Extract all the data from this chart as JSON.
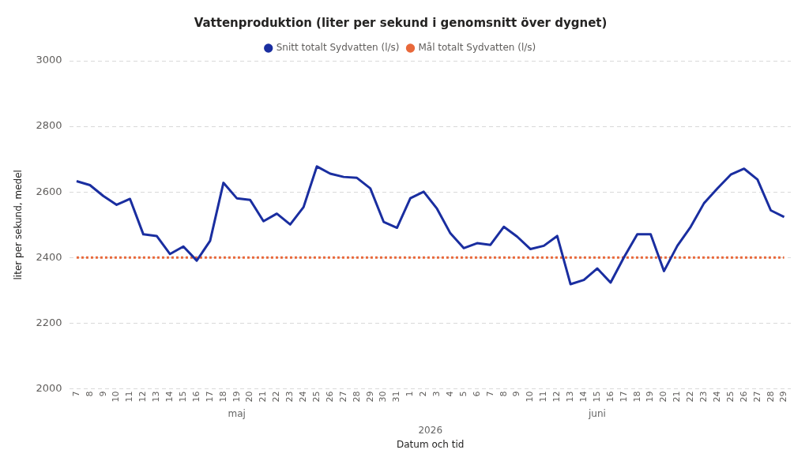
{
  "chart_data": {
    "type": "line",
    "title": "Vattenproduktion (liter per sekund i genomsnitt över dygnet)",
    "xlabel": "Datum och tid",
    "ylabel": "liter per sekund, medel",
    "x": [
      "2026-05-07",
      "2026-05-08",
      "2026-05-09",
      "2026-05-10",
      "2026-05-11",
      "2026-05-12",
      "2026-05-13",
      "2026-05-14",
      "2026-05-15",
      "2026-05-16",
      "2026-05-17",
      "2026-05-18",
      "2026-05-19",
      "2026-05-20",
      "2026-05-21",
      "2026-05-22",
      "2026-05-23",
      "2026-05-24",
      "2026-05-25",
      "2026-05-26",
      "2026-05-27",
      "2026-05-28",
      "2026-05-29",
      "2026-05-30",
      "2026-05-31",
      "2026-06-01",
      "2026-06-02",
      "2026-06-03",
      "2026-06-04",
      "2026-06-05",
      "2026-06-06",
      "2026-06-07",
      "2026-06-08",
      "2026-06-09",
      "2026-06-10",
      "2026-06-11",
      "2026-06-12",
      "2026-06-13",
      "2026-06-14",
      "2026-06-15",
      "2026-06-16",
      "2026-06-17",
      "2026-06-18",
      "2026-06-19",
      "2026-06-20",
      "2026-06-21",
      "2026-06-22",
      "2026-06-23",
      "2026-06-24",
      "2026-06-25",
      "2026-06-26",
      "2026-06-27",
      "2026-06-28",
      "2026-06-29"
    ],
    "series": [
      {
        "name": "Snitt totalt Sydvatten (l/s)",
        "color": "#1a2ea0",
        "line_style": "solid",
        "values": [
          2633,
          2621,
          2588,
          2561,
          2579,
          2471,
          2466,
          2411,
          2434,
          2391,
          2451,
          2628,
          2581,
          2576,
          2511,
          2534,
          2501,
          2554,
          2678,
          2656,
          2646,
          2643,
          2611,
          2509,
          2491,
          2581,
          2601,
          2549,
          2474,
          2429,
          2444,
          2439,
          2494,
          2464,
          2426,
          2436,
          2466,
          2319,
          2332,
          2367,
          2324,
          2401,
          2471,
          2471,
          2359,
          2436,
          2494,
          2566,
          2611,
          2653,
          2671,
          2638,
          2544,
          2524
        ]
      },
      {
        "name": "Mål totalt Sydvatten (l/s)",
        "color": "#e8683a",
        "line_style": "dotted",
        "values": [
          2400,
          2400,
          2400,
          2400,
          2400,
          2400,
          2400,
          2400,
          2400,
          2400,
          2400,
          2400,
          2400,
          2400,
          2400,
          2400,
          2400,
          2400,
          2400,
          2400,
          2400,
          2400,
          2400,
          2400,
          2400,
          2400,
          2400,
          2400,
          2400,
          2400,
          2400,
          2400,
          2400,
          2400,
          2400,
          2400,
          2400,
          2400,
          2400,
          2400,
          2400,
          2400,
          2400,
          2400,
          2400,
          2400,
          2400,
          2400,
          2400,
          2400,
          2400,
          2400,
          2400,
          2400
        ]
      }
    ],
    "xlim": [
      "2026-05-06T12:00",
      "2026-06-29T12:00"
    ],
    "xticks": [
      {
        "value": "2026-05-07",
        "label": "7"
      },
      {
        "value": "2026-05-08",
        "label": "8"
      },
      {
        "value": "2026-05-09",
        "label": "9"
      },
      {
        "value": "2026-05-10",
        "label": "10"
      },
      {
        "value": "2026-05-11",
        "label": "11"
      },
      {
        "value": "2026-05-12",
        "label": "12"
      },
      {
        "value": "2026-05-13",
        "label": "13"
      },
      {
        "value": "2026-05-14",
        "label": "14"
      },
      {
        "value": "2026-05-15",
        "label": "15"
      },
      {
        "value": "2026-05-16",
        "label": "16"
      },
      {
        "value": "2026-05-17",
        "label": "17"
      },
      {
        "value": "2026-05-18",
        "label": "18"
      },
      {
        "value": "2026-05-19",
        "label": "19"
      },
      {
        "value": "2026-05-20",
        "label": "20"
      },
      {
        "value": "2026-05-21",
        "label": "21"
      },
      {
        "value": "2026-05-22",
        "label": "22"
      },
      {
        "value": "2026-05-23",
        "label": "23"
      },
      {
        "value": "2026-05-24",
        "label": "24"
      },
      {
        "value": "2026-05-25",
        "label": "25"
      },
      {
        "value": "2026-05-26",
        "label": "26"
      },
      {
        "value": "2026-05-27",
        "label": "27"
      },
      {
        "value": "2026-05-28",
        "label": "28"
      },
      {
        "value": "2026-05-29",
        "label": "29"
      },
      {
        "value": "2026-05-30",
        "label": "30"
      },
      {
        "value": "2026-05-31",
        "label": "31"
      },
      {
        "value": "2026-06-01",
        "label": "1"
      },
      {
        "value": "2026-06-02",
        "label": "2"
      },
      {
        "value": "2026-06-03",
        "label": "3"
      },
      {
        "value": "2026-06-04",
        "label": "4"
      },
      {
        "value": "2026-06-05",
        "label": "5"
      },
      {
        "value": "2026-06-06",
        "label": "6"
      },
      {
        "value": "2026-06-07",
        "label": "7"
      },
      {
        "value": "2026-06-08",
        "label": "8"
      },
      {
        "value": "2026-06-09",
        "label": "9"
      },
      {
        "value": "2026-06-10",
        "label": "10"
      },
      {
        "value": "2026-06-11",
        "label": "11"
      },
      {
        "value": "2026-06-12",
        "label": "12"
      },
      {
        "value": "2026-06-13",
        "label": "13"
      },
      {
        "value": "2026-06-14",
        "label": "14"
      },
      {
        "value": "2026-06-15",
        "label": "15"
      },
      {
        "value": "2026-06-16",
        "label": "16"
      },
      {
        "value": "2026-06-17",
        "label": "17"
      },
      {
        "value": "2026-06-18",
        "label": "18"
      },
      {
        "value": "2026-06-19",
        "label": "19"
      },
      {
        "value": "2026-06-20",
        "label": "20"
      },
      {
        "value": "2026-06-21",
        "label": "21"
      },
      {
        "value": "2026-06-22",
        "label": "22"
      },
      {
        "value": "2026-06-23",
        "label": "23"
      },
      {
        "value": "2026-06-24",
        "label": "24"
      },
      {
        "value": "2026-06-25",
        "label": "25"
      },
      {
        "value": "2026-06-26",
        "label": "26"
      },
      {
        "value": "2026-06-27",
        "label": "27"
      },
      {
        "value": "2026-06-28",
        "label": "28"
      },
      {
        "value": "2026-06-29",
        "label": "29"
      }
    ],
    "ylim": [
      2000,
      3000
    ],
    "yticks": [
      2000,
      2200,
      2400,
      2600,
      2800,
      3000
    ],
    "annotations": [
      "maj",
      "juni",
      "2026"
    ],
    "grid": "y",
    "legend": "top",
    "marker": "none"
  }
}
